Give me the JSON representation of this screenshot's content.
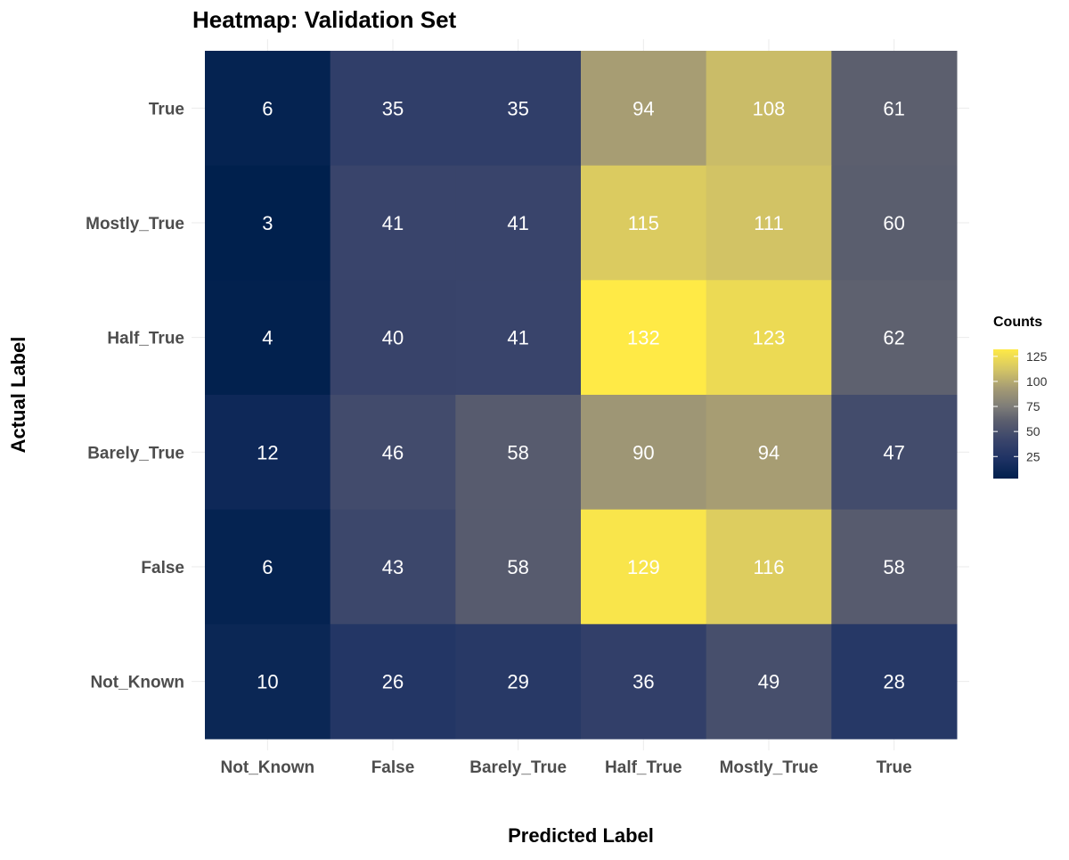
{
  "chart_data": {
    "type": "heatmap",
    "title": "Heatmap: Validation Set",
    "xlabel": "Predicted Label",
    "ylabel": "Actual Label",
    "x_categories": [
      "Not_Known",
      "False",
      "Barely_True",
      "Half_True",
      "Mostly_True",
      "True"
    ],
    "y_categories": [
      "True",
      "Mostly_True",
      "Half_True",
      "Barely_True",
      "False",
      "Not_Known"
    ],
    "values": [
      [
        6,
        35,
        35,
        94,
        108,
        61
      ],
      [
        3,
        41,
        41,
        115,
        111,
        60
      ],
      [
        4,
        40,
        41,
        132,
        123,
        62
      ],
      [
        12,
        46,
        58,
        90,
        94,
        47
      ],
      [
        6,
        43,
        58,
        129,
        116,
        58
      ],
      [
        10,
        26,
        29,
        36,
        49,
        28
      ]
    ],
    "legend": {
      "title": "Counts",
      "ticks": [
        25,
        50,
        75,
        100,
        125
      ],
      "range": [
        3,
        132
      ],
      "placement": "right"
    },
    "colorscale": "cividis",
    "colors": {
      "low": "#00204d",
      "mid": "#7c7b78",
      "high": "#ffea46",
      "cell_text": "#ffffff",
      "axis_text": "#4d4d4d",
      "title_text": "#000000",
      "grid": "#ebebeb"
    },
    "grid": true
  }
}
